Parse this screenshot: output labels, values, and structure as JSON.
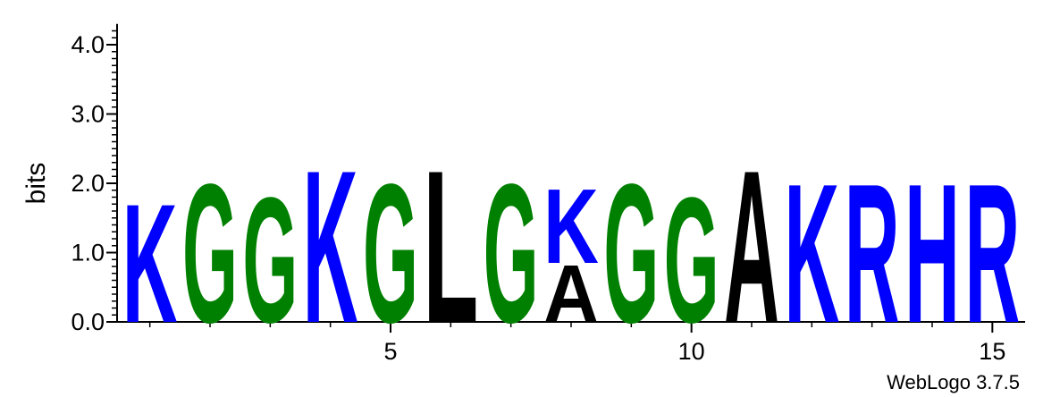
{
  "chart_data": {
    "type": "sequence-logo",
    "ylabel": "bits",
    "ylim": [
      0,
      4.3
    ],
    "yticks": [
      {
        "value": 0,
        "label": "0.0"
      },
      {
        "value": 1,
        "label": "1.0"
      },
      {
        "value": 2,
        "label": "2.0"
      },
      {
        "value": 3,
        "label": "3.0"
      },
      {
        "value": 4,
        "label": "4.0"
      }
    ],
    "xlim": [
      0.5,
      15.5
    ],
    "xticks": [
      {
        "value": 5,
        "label": "5"
      },
      {
        "value": 10,
        "label": "10"
      },
      {
        "value": 15,
        "label": "15"
      }
    ],
    "positions": [
      {
        "pos": 1,
        "stack": [
          {
            "letter": "K",
            "height": 1.75
          }
        ]
      },
      {
        "pos": 2,
        "stack": [
          {
            "letter": "G",
            "height": 2.05
          }
        ]
      },
      {
        "pos": 3,
        "stack": [
          {
            "letter": "G",
            "height": 1.85
          }
        ]
      },
      {
        "pos": 4,
        "stack": [
          {
            "letter": "K",
            "height": 2.25
          }
        ]
      },
      {
        "pos": 5,
        "stack": [
          {
            "letter": "G",
            "height": 2.05
          }
        ]
      },
      {
        "pos": 6,
        "stack": [
          {
            "letter": "L",
            "height": 2.25
          }
        ]
      },
      {
        "pos": 7,
        "stack": [
          {
            "letter": "G",
            "height": 2.05
          }
        ]
      },
      {
        "pos": 8,
        "stack": [
          {
            "letter": "A",
            "height": 0.85
          },
          {
            "letter": "K",
            "height": 1.1
          }
        ]
      },
      {
        "pos": 9,
        "stack": [
          {
            "letter": "G",
            "height": 2.05
          }
        ]
      },
      {
        "pos": 10,
        "stack": [
          {
            "letter": "G",
            "height": 1.85
          }
        ]
      },
      {
        "pos": 11,
        "stack": [
          {
            "letter": "A",
            "height": 2.25
          }
        ]
      },
      {
        "pos": 12,
        "stack": [
          {
            "letter": "K",
            "height": 2.05
          }
        ]
      },
      {
        "pos": 13,
        "stack": [
          {
            "letter": "R",
            "height": 2.05
          }
        ]
      },
      {
        "pos": 14,
        "stack": [
          {
            "letter": "H",
            "height": 2.05
          }
        ]
      },
      {
        "pos": 15,
        "stack": [
          {
            "letter": "R",
            "height": 2.05
          }
        ]
      }
    ],
    "colors": {
      "K": "#0000ff",
      "R": "#0000ff",
      "H": "#0000ff",
      "G": "#008000",
      "L": "#000000",
      "A": "#000000"
    }
  },
  "credit": "WebLogo 3.7.5"
}
